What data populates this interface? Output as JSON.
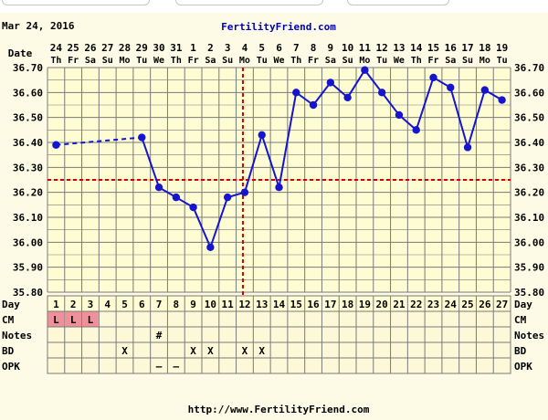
{
  "header": {
    "date_text": "Mar 24, 2016",
    "site_title": "FertilityFriend.com",
    "footer_url": "http://www.FertilityFriend.com"
  },
  "row_labels": {
    "date": "Date",
    "day": "Day",
    "cm": "CM",
    "notes": "Notes",
    "bd": "BD",
    "opk": "OPK"
  },
  "colors": {
    "grid": "#7a7a7a",
    "plot_bg": "#fefcd2",
    "line": "#1515d0",
    "coverline": "#d00000",
    "cm_fill": "#f0909a",
    "title": "#0000c0"
  },
  "chart_data": {
    "type": "line",
    "xlabel": "Day",
    "ylabel": "",
    "ylim": [
      35.8,
      36.7
    ],
    "y_ticks": [
      "36.70",
      "36.60",
      "36.50",
      "36.40",
      "36.30",
      "36.20",
      "36.10",
      "36.00",
      "35.90",
      "35.80"
    ],
    "y_tick_values": [
      36.7,
      36.6,
      36.5,
      36.4,
      36.3,
      36.2,
      36.1,
      36.0,
      35.9,
      35.8
    ],
    "cycle_days": [
      "1",
      "2",
      "3",
      "4",
      "5",
      "6",
      "7",
      "8",
      "9",
      "10",
      "11",
      "12",
      "13",
      "14",
      "15",
      "16",
      "17",
      "18",
      "19",
      "20",
      "21",
      "22",
      "23",
      "24",
      "25",
      "26",
      "27"
    ],
    "dates": [
      "24",
      "25",
      "26",
      "27",
      "28",
      "29",
      "30",
      "31",
      "1",
      "2",
      "3",
      "4",
      "5",
      "6",
      "7",
      "8",
      "9",
      "10",
      "11",
      "12",
      "13",
      "14",
      "15",
      "16",
      "17",
      "18",
      "19"
    ],
    "weekdays": [
      "Th",
      "Fr",
      "Sa",
      "Su",
      "Mo",
      "Tu",
      "We",
      "Th",
      "Fr",
      "Sa",
      "Su",
      "Mo",
      "Tu",
      "We",
      "Th",
      "Fr",
      "Sa",
      "Su",
      "Mo",
      "Tu",
      "We",
      "Th",
      "Fr",
      "Sa",
      "Su",
      "Mo",
      "Tu"
    ],
    "temps": [
      36.39,
      null,
      null,
      null,
      null,
      36.42,
      36.22,
      36.18,
      36.14,
      35.98,
      36.18,
      36.2,
      36.43,
      36.22,
      36.6,
      36.55,
      36.64,
      36.58,
      36.69,
      36.6,
      36.51,
      36.45,
      36.66,
      36.62,
      36.38,
      36.61,
      36.57
    ],
    "coverline": 36.25,
    "ovulation_day": 12,
    "cm": [
      "L",
      "L",
      "L",
      "",
      "",
      "",
      "",
      "",
      "",
      "",
      "",
      "",
      "",
      "",
      "",
      "",
      "",
      "",
      "",
      "",
      "",
      "",
      "",
      "",
      "",
      "",
      ""
    ],
    "notes": [
      "",
      "",
      "",
      "",
      "",
      "",
      "#",
      "",
      "",
      "",
      "",
      "",
      "",
      "",
      "",
      "",
      "",
      "",
      "",
      "",
      "",
      "",
      "",
      "",
      "",
      "",
      ""
    ],
    "bd": [
      "",
      "",
      "",
      "",
      "X",
      "",
      "",
      "",
      "X",
      "X",
      "",
      "X",
      "X",
      "",
      "",
      "",
      "",
      "",
      "",
      "",
      "",
      "",
      "",
      "",
      "",
      "",
      ""
    ],
    "opk": [
      "",
      "",
      "",
      "",
      "",
      "",
      "–",
      "–",
      "",
      "",
      "",
      "",
      "",
      "",
      "",
      "",
      "",
      "",
      "",
      "",
      "",
      "",
      "",
      "",
      "",
      "",
      ""
    ]
  }
}
